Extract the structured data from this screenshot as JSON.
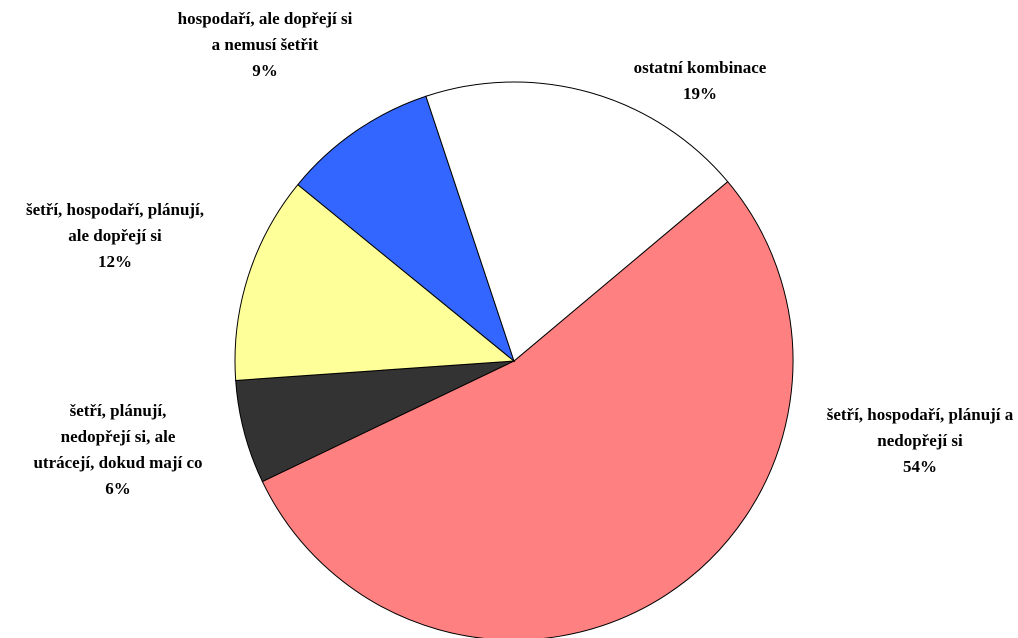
{
  "chart_data": {
    "type": "pie",
    "categories": [
      "šetří, hospodaří, plánují a nedopřejí si",
      "šetří, plánují, nedopřejí si, ale utrácejí, dokud mají co",
      "šetří, hospodaří, plánují, ale dopřejí si",
      "hospodaří, ale dopřejí si a nemusí šetřit",
      "ostatní kombinace"
    ],
    "values": [
      54,
      6,
      12,
      9,
      19
    ],
    "value_labels": [
      "54%",
      "6%",
      "12%",
      "9%",
      "19%"
    ],
    "colors": [
      "#ff8080",
      "#333333",
      "#ffff99",
      "#3366ff",
      "#ffffff"
    ]
  }
}
